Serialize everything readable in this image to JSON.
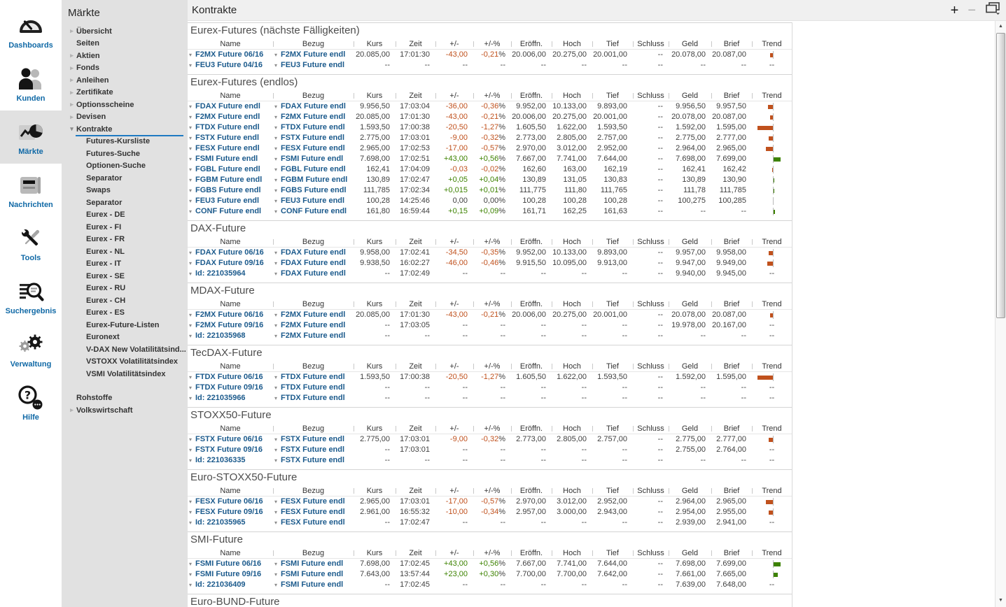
{
  "colors": {
    "negative": "#c0511d",
    "positive": "#3d8200",
    "link": "#1b5a8c",
    "accent": "#1e7ac2"
  },
  "sidebar": {
    "rail": [
      {
        "label": "Dashboards",
        "icon": "gauge-icon",
        "active": false
      },
      {
        "label": "Kunden",
        "icon": "people-icon",
        "active": false
      },
      {
        "label": "Märkte",
        "icon": "chart-pie-icon",
        "active": true
      },
      {
        "label": "Nachrichten",
        "icon": "newspaper-icon",
        "active": false
      },
      {
        "label": "Tools",
        "icon": "tools-icon",
        "active": false
      },
      {
        "label": "Suchergebnis",
        "icon": "search-list-icon",
        "active": false
      },
      {
        "label": "Verwaltung",
        "icon": "gears-icon",
        "active": false
      },
      {
        "label": "Hilfe",
        "icon": "help-icon",
        "active": false
      }
    ]
  },
  "nav": {
    "title": "Märkte",
    "items": [
      {
        "label": "Übersicht",
        "level": 1,
        "arrow": "collapsed"
      },
      {
        "label": "Seiten",
        "level": 1
      },
      {
        "label": "Aktien",
        "level": 1,
        "arrow": "collapsed"
      },
      {
        "label": "Fonds",
        "level": 1,
        "arrow": "collapsed"
      },
      {
        "label": "Anleihen",
        "level": 1,
        "arrow": "collapsed"
      },
      {
        "label": "Zertifikate",
        "level": 1,
        "arrow": "collapsed"
      },
      {
        "label": "Optionsscheine",
        "level": 1,
        "arrow": "collapsed"
      },
      {
        "label": "Devisen",
        "level": 1,
        "arrow": "collapsed"
      },
      {
        "label": "Kontrakte",
        "level": 1,
        "arrow": "expanded",
        "selected": true
      },
      {
        "label": "Futures-Kursliste",
        "level": 2
      },
      {
        "label": "Futures-Suche",
        "level": 2
      },
      {
        "label": "Optionen-Suche",
        "level": 2
      },
      {
        "label": "Separator",
        "level": 2
      },
      {
        "label": "Swaps",
        "level": 2
      },
      {
        "label": "Separator",
        "level": 2
      },
      {
        "label": "Eurex - DE",
        "level": 2
      },
      {
        "label": "Eurex - FI",
        "level": 2
      },
      {
        "label": "Eurex - FR",
        "level": 2
      },
      {
        "label": "Eurex - NL",
        "level": 2
      },
      {
        "label": "Eurex - IT",
        "level": 2
      },
      {
        "label": "Eurex - SE",
        "level": 2
      },
      {
        "label": "Eurex - RU",
        "level": 2
      },
      {
        "label": "Eurex - CH",
        "level": 2
      },
      {
        "label": "Eurex - ES",
        "level": 2
      },
      {
        "label": "Eurex-Future-Listen",
        "level": 2
      },
      {
        "label": "Euronext",
        "level": 2
      },
      {
        "label": "V-DAX New Volatilitätsind...",
        "level": 2
      },
      {
        "label": "VSTOXX Volatilitätsindex",
        "level": 2
      },
      {
        "label": "VSMI Volatilitätsindex",
        "level": 2
      },
      {
        "spacer": true
      },
      {
        "label": "Rohstoffe",
        "level": 1
      },
      {
        "label": "Volkswirtschaft",
        "level": 1,
        "arrow": "collapsed"
      }
    ]
  },
  "toolbar": {
    "title": "Kontrakte",
    "add_icon": "+",
    "minimize_icon": "−"
  },
  "scrollbar": {
    "up_icon": "▲",
    "down_icon": "▼"
  },
  "main": {
    "columns": [
      "Name",
      "Bezug",
      "Kurs",
      "Zeit",
      "+/-",
      "+/-%",
      "Eröffn.",
      "Hoch",
      "Tief",
      "Schluss",
      "Geld",
      "Brief",
      "Trend"
    ],
    "sections": [
      {
        "title": "Eurex-Futures (nächste Fälligkeiten)",
        "rows": [
          [
            "F2MX Future 06/16",
            "F2MX Future endl",
            "20.085,00",
            "17:01:30",
            "-43,00",
            "-0,21",
            "20.006,00",
            "20.275,00",
            "20.001,00",
            "--",
            "20.078,00",
            "20.087,00",
            -0.21
          ],
          [
            "FEU3 Future 04/16",
            "FEU3 Future endl",
            "--",
            "--",
            "--",
            "--",
            "--",
            "--",
            "--",
            "--",
            "--",
            "--",
            null
          ]
        ]
      },
      {
        "title": "Eurex-Futures (endlos)",
        "rows": [
          [
            "FDAX Future endl",
            "FDAX Future endl",
            "9.956,50",
            "17:03:04",
            "-36,00",
            "-0,36",
            "9.952,00",
            "10.133,00",
            "9.893,00",
            "--",
            "9.956,50",
            "9.957,50",
            -0.36
          ],
          [
            "F2MX Future endl",
            "F2MX Future endl",
            "20.085,00",
            "17:01:30",
            "-43,00",
            "-0,21",
            "20.006,00",
            "20.275,00",
            "20.001,00",
            "--",
            "20.078,00",
            "20.087,00",
            -0.21
          ],
          [
            "FTDX Future endl",
            "FTDX Future endl",
            "1.593,50",
            "17:00:38",
            "-20,50",
            "-1,27",
            "1.605,50",
            "1.622,00",
            "1.593,50",
            "--",
            "1.592,00",
            "1.595,00",
            -1.27
          ],
          [
            "FSTX Future endl",
            "FSTX Future endl",
            "2.775,00",
            "17:03:01",
            "-9,00",
            "-0,32",
            "2.773,00",
            "2.805,00",
            "2.757,00",
            "--",
            "2.775,00",
            "2.777,00",
            -0.32
          ],
          [
            "FESX Future endl",
            "FESX Future endl",
            "2.965,00",
            "17:02:53",
            "-17,00",
            "-0,57",
            "2.970,00",
            "3.012,00",
            "2.952,00",
            "--",
            "2.964,00",
            "2.965,00",
            -0.57
          ],
          [
            "FSMI Future endl",
            "FSMI Future endl",
            "7.698,00",
            "17:02:51",
            "+43,00",
            "+0,56",
            "7.667,00",
            "7.741,00",
            "7.644,00",
            "--",
            "7.698,00",
            "7.699,00",
            0.56
          ],
          [
            "FGBL Future endl",
            "FGBL Future endl",
            "162,41",
            "17:04:09",
            "-0,03",
            "-0,02",
            "162,60",
            "163,00",
            "162,19",
            "--",
            "162,41",
            "162,42",
            -0.02
          ],
          [
            "FGBM Future endl",
            "FGBM Future endl",
            "130,89",
            "17:02:47",
            "+0,05",
            "+0,04",
            "130,89",
            "131,05",
            "130,83",
            "--",
            "130,89",
            "130,90",
            0.04
          ],
          [
            "FGBS Future endl",
            "FGBS Future endl",
            "111,785",
            "17:02:34",
            "+0,015",
            "+0,01",
            "111,775",
            "111,80",
            "111,765",
            "--",
            "111,78",
            "111,785",
            0.01
          ],
          [
            "FEU3 Future endl",
            "FEU3 Future endl",
            "100,28",
            "14:25:46",
            "0,00",
            "0,00",
            "100,28",
            "100,28",
            "100,28",
            "--",
            "100,275",
            "100,285",
            0
          ],
          [
            "CONF Future endl",
            "CONF Future endl",
            "161,80",
            "16:59:44",
            "+0,15",
            "+0,09",
            "161,71",
            "162,25",
            "161,63",
            "--",
            "--",
            "--",
            0.09
          ]
        ]
      },
      {
        "title": "DAX-Future",
        "rows": [
          [
            "FDAX Future 06/16",
            "FDAX Future endl",
            "9.958,00",
            "17:02:41",
            "-34,50",
            "-0,35",
            "9.952,00",
            "10.133,00",
            "9.893,00",
            "--",
            "9.957,00",
            "9.958,00",
            -0.35
          ],
          [
            "FDAX Future 09/16",
            "FDAX Future endl",
            "9.938,50",
            "16:02:27",
            "-46,00",
            "-0,46",
            "9.915,50",
            "10.095,00",
            "9.913,00",
            "--",
            "9.947,00",
            "9.949,00",
            -0.46
          ],
          [
            "Id: 221035964",
            "FDAX Future endl",
            "--",
            "17:02:49",
            "--",
            "--",
            "--",
            "--",
            "--",
            "--",
            "9.940,00",
            "9.945,00",
            null
          ]
        ]
      },
      {
        "title": "MDAX-Future",
        "rows": [
          [
            "F2MX Future 06/16",
            "F2MX Future endl",
            "20.085,00",
            "17:01:30",
            "-43,00",
            "-0,21",
            "20.006,00",
            "20.275,00",
            "20.001,00",
            "--",
            "20.078,00",
            "20.087,00",
            -0.21
          ],
          [
            "F2MX Future 09/16",
            "F2MX Future endl",
            "--",
            "17:03:05",
            "--",
            "--",
            "--",
            "--",
            "--",
            "--",
            "19.978,00",
            "20.167,00",
            null
          ],
          [
            "Id: 221035968",
            "F2MX Future endl",
            "--",
            "--",
            "--",
            "--",
            "--",
            "--",
            "--",
            "--",
            "--",
            "--",
            null
          ]
        ]
      },
      {
        "title": "TecDAX-Future",
        "rows": [
          [
            "FTDX Future 06/16",
            "FTDX Future endl",
            "1.593,50",
            "17:00:38",
            "-20,50",
            "-1,27",
            "1.605,50",
            "1.622,00",
            "1.593,50",
            "--",
            "1.592,00",
            "1.595,00",
            -1.27
          ],
          [
            "FTDX Future 09/16",
            "FTDX Future endl",
            "--",
            "--",
            "--",
            "--",
            "--",
            "--",
            "--",
            "--",
            "--",
            "--",
            null
          ],
          [
            "Id: 221035966",
            "FTDX Future endl",
            "--",
            "--",
            "--",
            "--",
            "--",
            "--",
            "--",
            "--",
            "--",
            "--",
            null
          ]
        ]
      },
      {
        "title": "STOXX50-Future",
        "rows": [
          [
            "FSTX Future 06/16",
            "FSTX Future endl",
            "2.775,00",
            "17:03:01",
            "-9,00",
            "-0,32",
            "2.773,00",
            "2.805,00",
            "2.757,00",
            "--",
            "2.775,00",
            "2.777,00",
            -0.32
          ],
          [
            "FSTX Future 09/16",
            "FSTX Future endl",
            "--",
            "17:03:01",
            "--",
            "--",
            "--",
            "--",
            "--",
            "--",
            "2.755,00",
            "2.764,00",
            null
          ],
          [
            "Id: 221036335",
            "FSTX Future endl",
            "--",
            "--",
            "--",
            "--",
            "--",
            "--",
            "--",
            "--",
            "--",
            "--",
            null
          ]
        ]
      },
      {
        "title": "Euro-STOXX50-Future",
        "rows": [
          [
            "FESX Future 06/16",
            "FESX Future endl",
            "2.965,00",
            "17:03:01",
            "-17,00",
            "-0,57",
            "2.970,00",
            "3.012,00",
            "2.952,00",
            "--",
            "2.964,00",
            "2.965,00",
            -0.57
          ],
          [
            "FESX Future 09/16",
            "FESX Future endl",
            "2.961,00",
            "16:55:32",
            "-10,00",
            "-0,34",
            "2.957,00",
            "3.000,00",
            "2.943,00",
            "--",
            "2.954,00",
            "2.955,00",
            -0.34
          ],
          [
            "Id: 221035965",
            "FESX Future endl",
            "--",
            "17:02:47",
            "--",
            "--",
            "--",
            "--",
            "--",
            "--",
            "2.939,00",
            "2.941,00",
            null
          ]
        ]
      },
      {
        "title": "SMI-Future",
        "rows": [
          [
            "FSMI Future 06/16",
            "FSMI Future endl",
            "7.698,00",
            "17:02:45",
            "+43,00",
            "+0,56",
            "7.667,00",
            "7.741,00",
            "7.644,00",
            "--",
            "7.698,00",
            "7.699,00",
            0.56
          ],
          [
            "FSMI Future 09/16",
            "FSMI Future endl",
            "7.643,00",
            "13:57:44",
            "+23,00",
            "+0,30",
            "7.700,00",
            "7.700,00",
            "7.642,00",
            "--",
            "7.661,00",
            "7.665,00",
            0.3
          ],
          [
            "Id: 221036409",
            "FSMI Future endl",
            "--",
            "17:02:45",
            "--",
            "--",
            "--",
            "--",
            "--",
            "--",
            "7.639,00",
            "7.648,00",
            null
          ]
        ]
      },
      {
        "title": "Euro-BUND-Future"
      }
    ]
  }
}
